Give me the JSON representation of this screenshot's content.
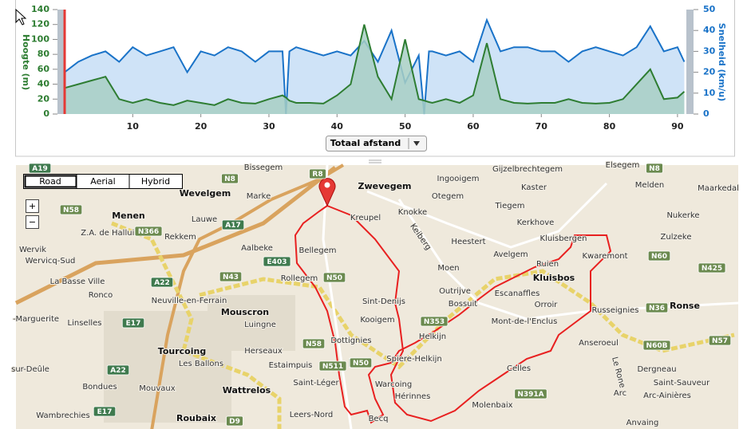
{
  "chart_data": {
    "type": "line",
    "x": [
      0,
      2,
      4,
      6,
      8,
      10,
      12,
      14,
      16,
      18,
      20,
      22,
      24,
      26,
      28,
      30,
      32,
      32.5,
      33,
      34,
      36,
      38,
      40,
      42,
      44,
      46,
      48,
      50,
      52,
      52.8,
      53.5,
      54,
      56,
      58,
      60,
      62,
      64,
      66,
      68,
      70,
      72,
      74,
      76,
      78,
      80,
      82,
      84,
      86,
      88,
      90,
      91
    ],
    "series": [
      {
        "color": "#2e7d32",
        "fill": "#a8cfc4",
        "values": [
          35,
          40,
          45,
          50,
          20,
          15,
          20,
          15,
          12,
          18,
          15,
          12,
          20,
          15,
          14,
          20,
          25,
          22,
          18,
          15,
          15,
          14,
          25,
          40,
          120,
          50,
          20,
          100,
          20,
          18,
          16,
          15,
          20,
          15,
          25,
          95,
          20,
          15,
          14,
          15,
          15,
          20,
          15,
          14,
          15,
          20,
          40,
          60,
          20,
          22,
          30
        ]
      },
      {
        "color": "#1a73c8",
        "fill": "#cfe3f7",
        "axis": "y2",
        "values": [
          20,
          25,
          28,
          30,
          25,
          32,
          28,
          30,
          32,
          20,
          30,
          28,
          32,
          30,
          25,
          30,
          30,
          0,
          30,
          32,
          30,
          28,
          30,
          28,
          35,
          25,
          40,
          15,
          28,
          0,
          30,
          30,
          28,
          30,
          25,
          45,
          30,
          32,
          32,
          30,
          30,
          25,
          30,
          32,
          30,
          28,
          32,
          42,
          30,
          32,
          25
        ]
      }
    ],
    "ylabel": "Hoogte (m)",
    "y2label": "Snelheid (km/u)",
    "xlim": [
      0,
      91.3
    ],
    "ylim": [
      0,
      140
    ],
    "y2lim": [
      0,
      50
    ],
    "xticks": [
      10,
      20,
      30,
      40,
      50,
      60,
      70,
      80,
      90
    ],
    "yticks": [
      0,
      20,
      40,
      60,
      80,
      100,
      120,
      140
    ],
    "y2ticks": [
      0,
      10,
      20,
      30,
      40,
      50
    ],
    "ylabel_color": "#2e7d32",
    "y2label_color": "#1a73c8",
    "cursor_x": 0,
    "cursor_color": "#e53935"
  },
  "controls": {
    "distance_select": "Totaal afstand"
  },
  "map": {
    "buttons": [
      "Road",
      "Aerial",
      "Hybrid"
    ],
    "zoom": [
      "+",
      "−"
    ],
    "places": [
      "Bissegem",
      "Zwevegem",
      "Gijzelbrechtegem",
      "Elsegem",
      "Wevelgem",
      "Marke",
      "Ingooigem",
      "Otegem",
      "Kaster",
      "Melden",
      "Maarkedal",
      "Menen",
      "Lauwe",
      "Kreupel",
      "Knokke",
      "Tiegem",
      "Kerkhove",
      "Nukerke",
      "Wervik",
      "Z.A. de Halluin",
      "Rekkem",
      "Aalbeke",
      "Bellegem",
      "Heestert",
      "Kluisbergen",
      "Zulzeke",
      "Wervicq-Sud",
      "Avelgem",
      "Kwaremont",
      "Moen",
      "Ruien",
      "La Basse Ville",
      "Rollegem",
      "Kluisbos",
      "Outrijve",
      "Escanaffles",
      "Ronse",
      "Ronco",
      "Neuville-en-Ferrain",
      "Sint-Denijs",
      "Bossuit",
      "Orroir",
      "Russeignies",
      "Mouscron",
      "Kooigem",
      "Mont-de-l'Enclus",
      "-Marguerite",
      "Linselles",
      "Luingne",
      "Helkijn",
      "Dottignies",
      "Anseroeul",
      "Herseaux",
      "Tourcoing",
      "Spiere-Helkijn",
      "sur-Deûle",
      "Les Ballons",
      "Estaimpuis",
      "Celles",
      "Dergneau",
      "Saint-Léger",
      "Warcoing",
      "Saint-Sauveur",
      "Bondues",
      "Mouvaux",
      "Wattrelos",
      "Hérinnes",
      "Arc",
      "Arc-Ainières",
      "Wambrechies",
      "Roubaix",
      "Leers-Nord",
      "Molenbaix",
      "Becq",
      "Anvaing",
      "Le Rone",
      "Keiberg"
    ],
    "road_signs": [
      "A19",
      "R8",
      "N8",
      "N58",
      "A17",
      "N366",
      "E403",
      "N43",
      "A22",
      "N50",
      "N50",
      "E17",
      "N58",
      "N511",
      "N50",
      "N353",
      "N391A",
      "N8",
      "N60",
      "N425",
      "N36",
      "N60B",
      "N57",
      "D9",
      "A22",
      "E17"
    ]
  }
}
